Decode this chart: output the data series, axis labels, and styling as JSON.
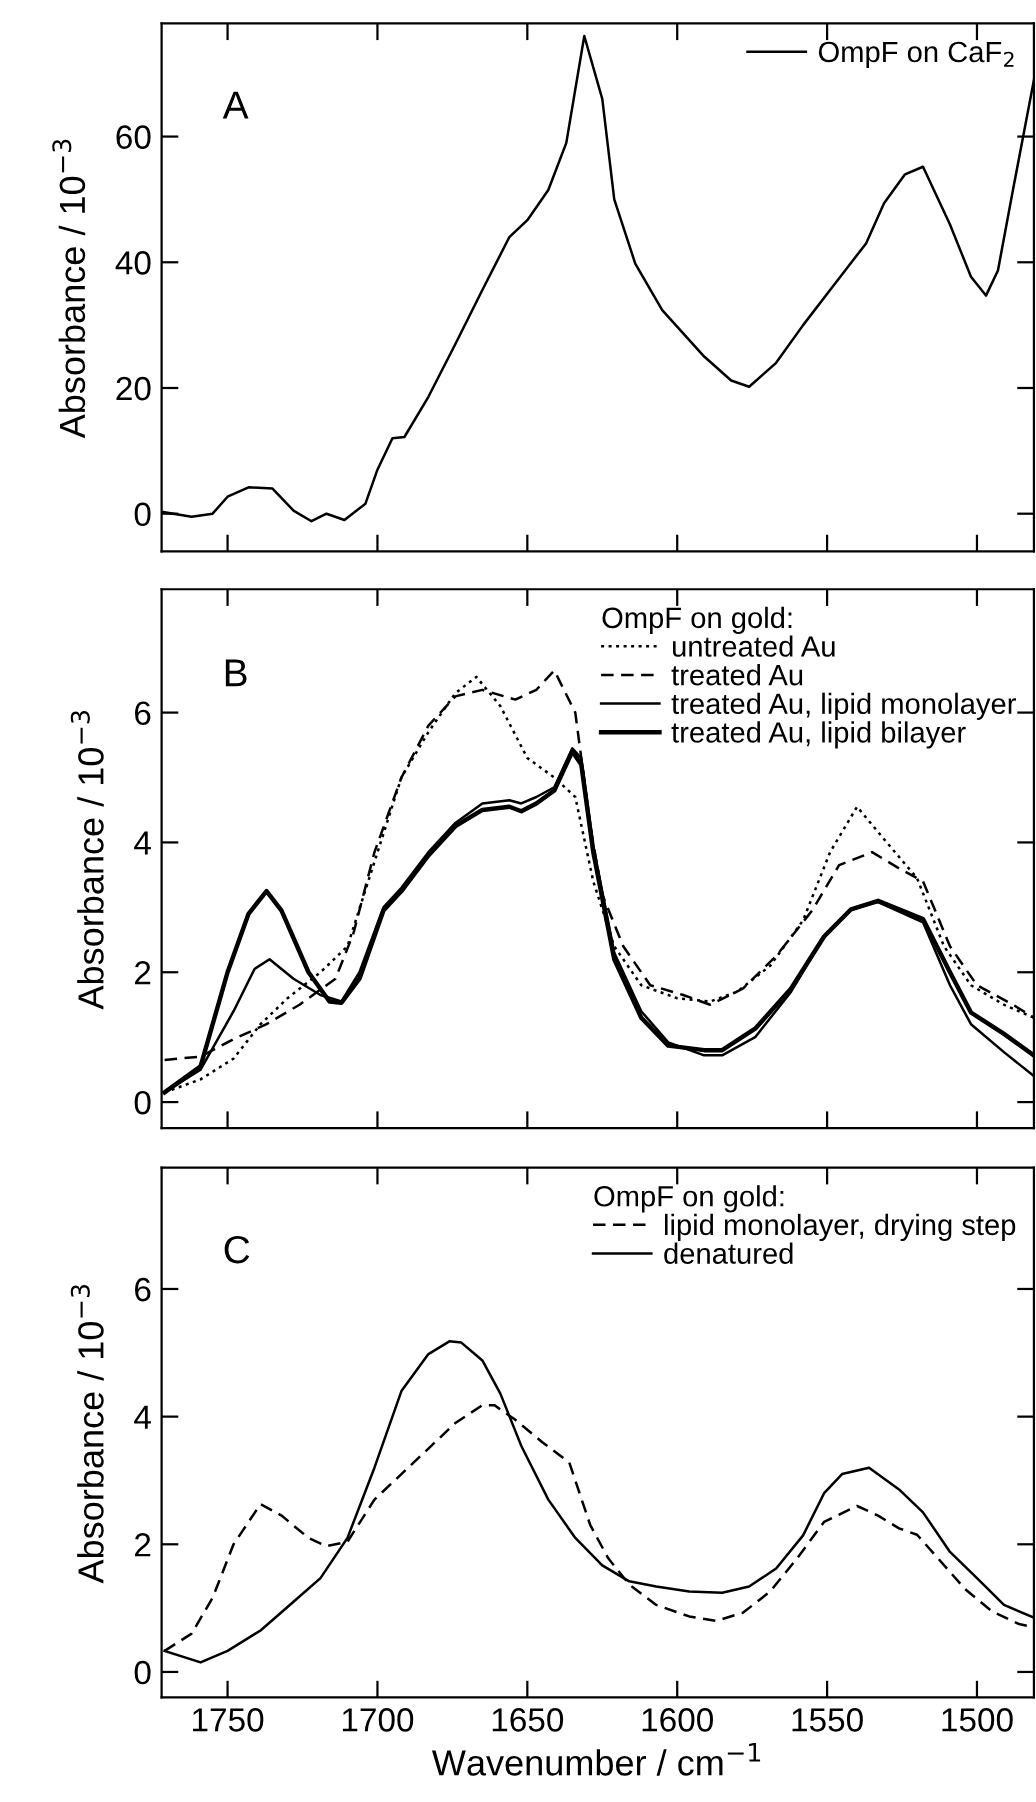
{
  "chart_data": [
    {
      "type": "line",
      "annotations": [
        "A"
      ],
      "ylabel": "Absorbance / 10$^{−3}$",
      "xlim": [
        1772,
        1481
      ],
      "ylim": [
        -6,
        78
      ],
      "xticks": [
        1750,
        1700,
        1650,
        1600,
        1550,
        1500
      ],
      "yticks": [
        0,
        20,
        40,
        60
      ],
      "tick_labels": "y",
      "grid": false,
      "legend": "top right",
      "marker": "none",
      "series": [
        {
          "name": "OmpF on CaF$_{2}$",
          "color": "#000000",
          "line_style": "solid",
          "x": [
            1772,
            1762,
            1755,
            1750,
            1743,
            1735,
            1728,
            1722,
            1717,
            1711,
            1704,
            1700,
            1695,
            1691,
            1683,
            1674,
            1665,
            1656,
            1650,
            1643,
            1637,
            1631,
            1625,
            1621,
            1614,
            1605,
            1591,
            1582,
            1576,
            1567,
            1558,
            1549,
            1537,
            1531,
            1524,
            1518,
            1509,
            1502,
            1497,
            1493,
            1488,
            1481
          ],
          "values": [
            0.3,
            -0.5,
            0,
            2.7,
            4.2,
            4,
            0.5,
            -1.2,
            0,
            -1,
            1.6,
            7,
            12,
            12.2,
            18.6,
            27,
            35.6,
            44,
            46.7,
            51.5,
            59,
            76,
            66,
            50,
            39.8,
            32.4,
            25,
            21.2,
            20.2,
            24,
            30,
            35.6,
            43,
            49.4,
            54,
            55.2,
            46,
            37.7,
            34.7,
            38.7,
            51.5,
            69
          ]
        }
      ]
    },
    {
      "type": "line",
      "annotations": [
        "B"
      ],
      "ylabel": "Absorbance / 10$^{−3}$",
      "legend_title": "OmpF on gold:",
      "xlim": [
        1772,
        1481
      ],
      "ylim": [
        -0.4,
        7.9
      ],
      "xticks": [
        1750,
        1700,
        1650,
        1600,
        1550,
        1500
      ],
      "yticks": [
        0,
        2,
        4,
        6
      ],
      "tick_labels": "y",
      "grid": false,
      "legend": "top right",
      "marker": "none",
      "series": [
        {
          "name": "untreated Au",
          "color": "#000000",
          "line_style": "dotted",
          "x": [
            1771,
            1759,
            1748,
            1739,
            1730,
            1719,
            1710,
            1701,
            1692,
            1683,
            1674,
            1667,
            1659,
            1650,
            1641,
            1634,
            1628,
            1621,
            1612,
            1600,
            1589,
            1580,
            1569,
            1558,
            1549,
            1540,
            1531,
            1520,
            1511,
            1502,
            1491,
            1481
          ],
          "values": [
            0.15,
            0.35,
            0.67,
            1.2,
            1.6,
            2.0,
            2.4,
            3.7,
            5.0,
            5.7,
            6.3,
            6.55,
            6.1,
            5.3,
            5.0,
            4.7,
            3.4,
            2.4,
            1.8,
            1.6,
            1.55,
            1.7,
            2.1,
            2.8,
            3.85,
            4.55,
            4.05,
            3.45,
            2.4,
            1.8,
            1.5,
            1.3
          ]
        },
        {
          "name": "treated Au",
          "color": "#000000",
          "line_style": "dashed",
          "x": [
            1771,
            1759,
            1748,
            1737,
            1726,
            1714,
            1708,
            1701,
            1692,
            1683,
            1674,
            1665,
            1654,
            1647,
            1641,
            1634,
            1629,
            1625,
            1618,
            1609,
            1598,
            1589,
            1578,
            1567,
            1555,
            1546,
            1535,
            1526,
            1518,
            1509,
            1500,
            1488,
            1481
          ],
          "values": [
            0.65,
            0.7,
            0.97,
            1.2,
            1.5,
            1.9,
            2.6,
            3.85,
            5.0,
            5.8,
            6.25,
            6.35,
            6.2,
            6.35,
            6.65,
            6.0,
            4.25,
            3.2,
            2.4,
            1.8,
            1.65,
            1.5,
            1.75,
            2.25,
            2.95,
            3.65,
            3.85,
            3.6,
            3.4,
            2.4,
            1.8,
            1.5,
            1.3
          ]
        },
        {
          "name": "treated Au, lipid monolayer",
          "color": "#000000",
          "line_style": "solid",
          "x": [
            1771,
            1759,
            1748,
            1741,
            1736,
            1728,
            1719,
            1712,
            1706,
            1698,
            1692,
            1683,
            1674,
            1665,
            1656,
            1652,
            1647,
            1641,
            1635,
            1632,
            1628,
            1621,
            1612,
            1603,
            1591,
            1585,
            1574,
            1562,
            1551,
            1542,
            1533,
            1518,
            1509,
            1502,
            1491,
            1481
          ],
          "values": [
            0.15,
            0.5,
            1.4,
            2.05,
            2.2,
            1.9,
            1.65,
            1.55,
            2.0,
            3.0,
            3.3,
            3.85,
            4.3,
            4.6,
            4.65,
            4.6,
            4.7,
            4.85,
            5.45,
            5.3,
            3.95,
            2.3,
            1.4,
            0.92,
            0.72,
            0.72,
            1.0,
            1.7,
            2.55,
            2.97,
            3.08,
            2.77,
            1.8,
            1.2,
            0.77,
            0.4
          ]
        },
        {
          "name": "treated Au, lipid bilayer",
          "color": "#000000",
          "line_style": "solid",
          "x": [
            1771,
            1759,
            1750,
            1743,
            1737,
            1732,
            1723,
            1716,
            1712,
            1706,
            1698,
            1692,
            1683,
            1674,
            1665,
            1656,
            1652,
            1647,
            1641,
            1635,
            1632,
            1628,
            1621,
            1612,
            1603,
            1591,
            1585,
            1574,
            1562,
            1551,
            1542,
            1533,
            1518,
            1509,
            1502,
            1491,
            1481
          ],
          "values": [
            0.15,
            0.55,
            2.0,
            2.9,
            3.25,
            2.95,
            2.0,
            1.55,
            1.53,
            1.9,
            2.95,
            3.25,
            3.8,
            4.25,
            4.5,
            4.55,
            4.48,
            4.6,
            4.8,
            5.4,
            5.2,
            3.85,
            2.2,
            1.3,
            0.87,
            0.8,
            0.8,
            1.13,
            1.75,
            2.55,
            2.97,
            3.1,
            2.82,
            2.0,
            1.38,
            1.05,
            0.72
          ]
        }
      ]
    },
    {
      "type": "line",
      "annotations": [
        "C"
      ],
      "ylabel": "Absorbance / 10$^{−3}$",
      "xlabel": "Wavenumber / cm$^{−1}$",
      "legend_title": "OmpF on gold:",
      "xlim": [
        1772,
        1481
      ],
      "ylim": [
        -0.4,
        7.9
      ],
      "xticks": [
        1750,
        1700,
        1650,
        1600,
        1550,
        1500
      ],
      "yticks": [
        0,
        2,
        4,
        6
      ],
      "grid": false,
      "legend": "top right",
      "marker": "none",
      "series": [
        {
          "name": "lipid monolayer, drying step",
          "color": "#000000",
          "line_style": "dashed",
          "x": [
            1771,
            1762,
            1755,
            1748,
            1739,
            1732,
            1723,
            1717,
            1710,
            1701,
            1692,
            1683,
            1674,
            1665,
            1661,
            1654,
            1645,
            1636,
            1629,
            1623,
            1616,
            1607,
            1596,
            1587,
            1578,
            1569,
            1560,
            1551,
            1540,
            1533,
            1526,
            1520,
            1513,
            1504,
            1495,
            1486,
            1481
          ],
          "values": [
            0.33,
            0.6,
            1.16,
            2.0,
            2.63,
            2.45,
            2.1,
            1.97,
            2.04,
            2.7,
            3.1,
            3.5,
            3.9,
            4.18,
            4.18,
            3.95,
            3.6,
            3.28,
            2.3,
            1.78,
            1.37,
            1.05,
            0.87,
            0.8,
            0.93,
            1.26,
            1.78,
            2.35,
            2.6,
            2.45,
            2.25,
            2.15,
            1.78,
            1.3,
            0.95,
            0.75,
            0.7
          ]
        },
        {
          "name": "denatured",
          "color": "#000000",
          "line_style": "solid",
          "x": [
            1771,
            1759,
            1750,
            1739,
            1728,
            1719,
            1710,
            1701,
            1692,
            1683,
            1676,
            1672,
            1665,
            1659,
            1652,
            1643,
            1634,
            1625,
            1616,
            1607,
            1596,
            1585,
            1576,
            1567,
            1558,
            1551,
            1545,
            1536,
            1526,
            1518,
            1509,
            1500,
            1491,
            1481
          ],
          "values": [
            0.33,
            0.15,
            0.33,
            0.65,
            1.1,
            1.47,
            2.1,
            3.2,
            4.4,
            4.98,
            5.18,
            5.16,
            4.88,
            4.36,
            3.54,
            2.7,
            2.1,
            1.67,
            1.42,
            1.34,
            1.26,
            1.24,
            1.34,
            1.62,
            2.14,
            2.8,
            3.1,
            3.2,
            2.86,
            2.5,
            1.88,
            1.47,
            1.05,
            0.85
          ]
        }
      ]
    }
  ]
}
